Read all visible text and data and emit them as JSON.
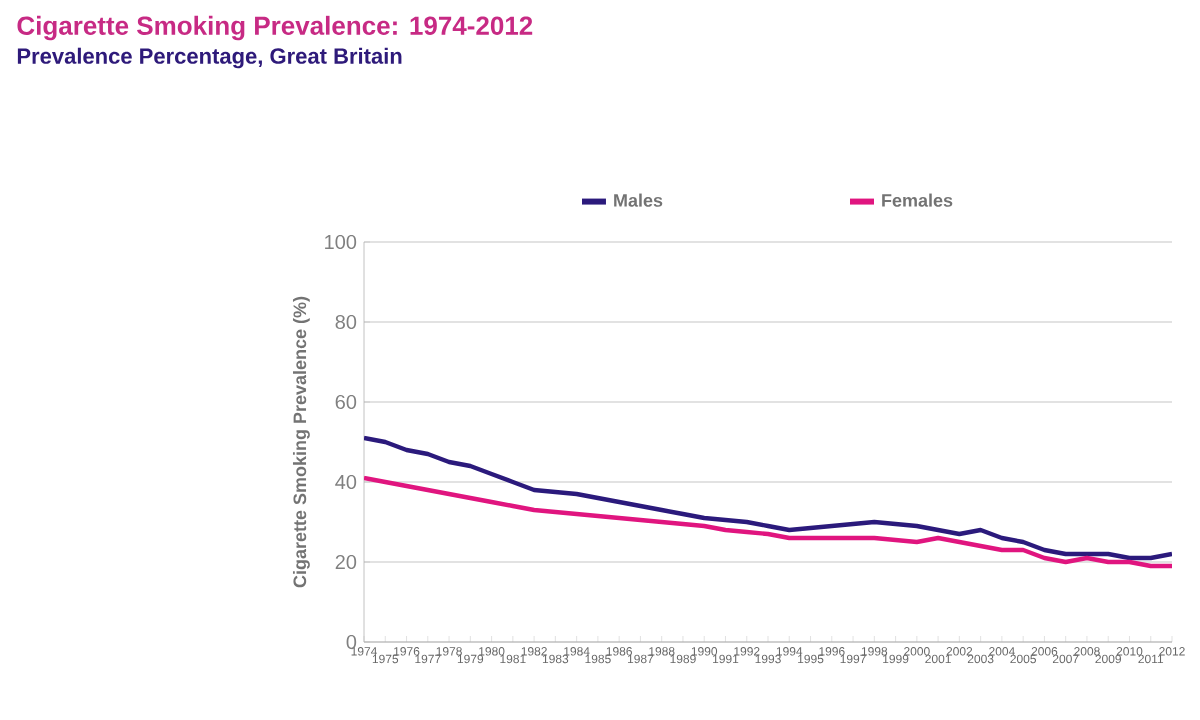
{
  "chart_data": {
    "type": "line",
    "title": "Cigarette Smoking Prevalence: 1974-2012",
    "subtitle": "Prevalence Percentage, Great Britain",
    "ylabel": "Cigarette Smoking Prevalence (%)",
    "categories": [
      "1974",
      "1975",
      "1976",
      "1977",
      "1978",
      "1979",
      "1980",
      "1981",
      "1982",
      "1983",
      "1984",
      "1985",
      "1986",
      "1987",
      "1988",
      "1989",
      "1990",
      "1991",
      "1992",
      "1993",
      "1994",
      "1995",
      "1996",
      "1997",
      "1998",
      "1999",
      "2000",
      "2001",
      "2002",
      "2003",
      "2004",
      "2005",
      "2006",
      "2007",
      "2008",
      "2009",
      "2010",
      "2011",
      "2012"
    ],
    "series": [
      {
        "name": "Males",
        "color": "#2b1a7c",
        "values": [
          51,
          50,
          48,
          47,
          45,
          44,
          42,
          40,
          38,
          37.5,
          37,
          36,
          35,
          34,
          33,
          32,
          31,
          30.5,
          30,
          29,
          28,
          28.5,
          29,
          29.5,
          30,
          29.5,
          29,
          28,
          27,
          28,
          26,
          25,
          23,
          22,
          22,
          22,
          21,
          21,
          22
        ]
      },
      {
        "name": "Females",
        "color": "#e0157f",
        "values": [
          41,
          40,
          39,
          38,
          37,
          36,
          35,
          34,
          33,
          32.5,
          32,
          31.5,
          31,
          30.5,
          30,
          29.5,
          29,
          28,
          27.5,
          27,
          26,
          26,
          26,
          26,
          26,
          25.5,
          25,
          26,
          25,
          24,
          23,
          23,
          21,
          20,
          21,
          20,
          20,
          19,
          19
        ]
      }
    ],
    "ylim": [
      0,
      100
    ],
    "yticks": [
      0,
      20,
      40,
      60,
      80,
      100
    ],
    "grid": "y",
    "legend": "top",
    "marker": "none",
    "line_style": "solid"
  }
}
